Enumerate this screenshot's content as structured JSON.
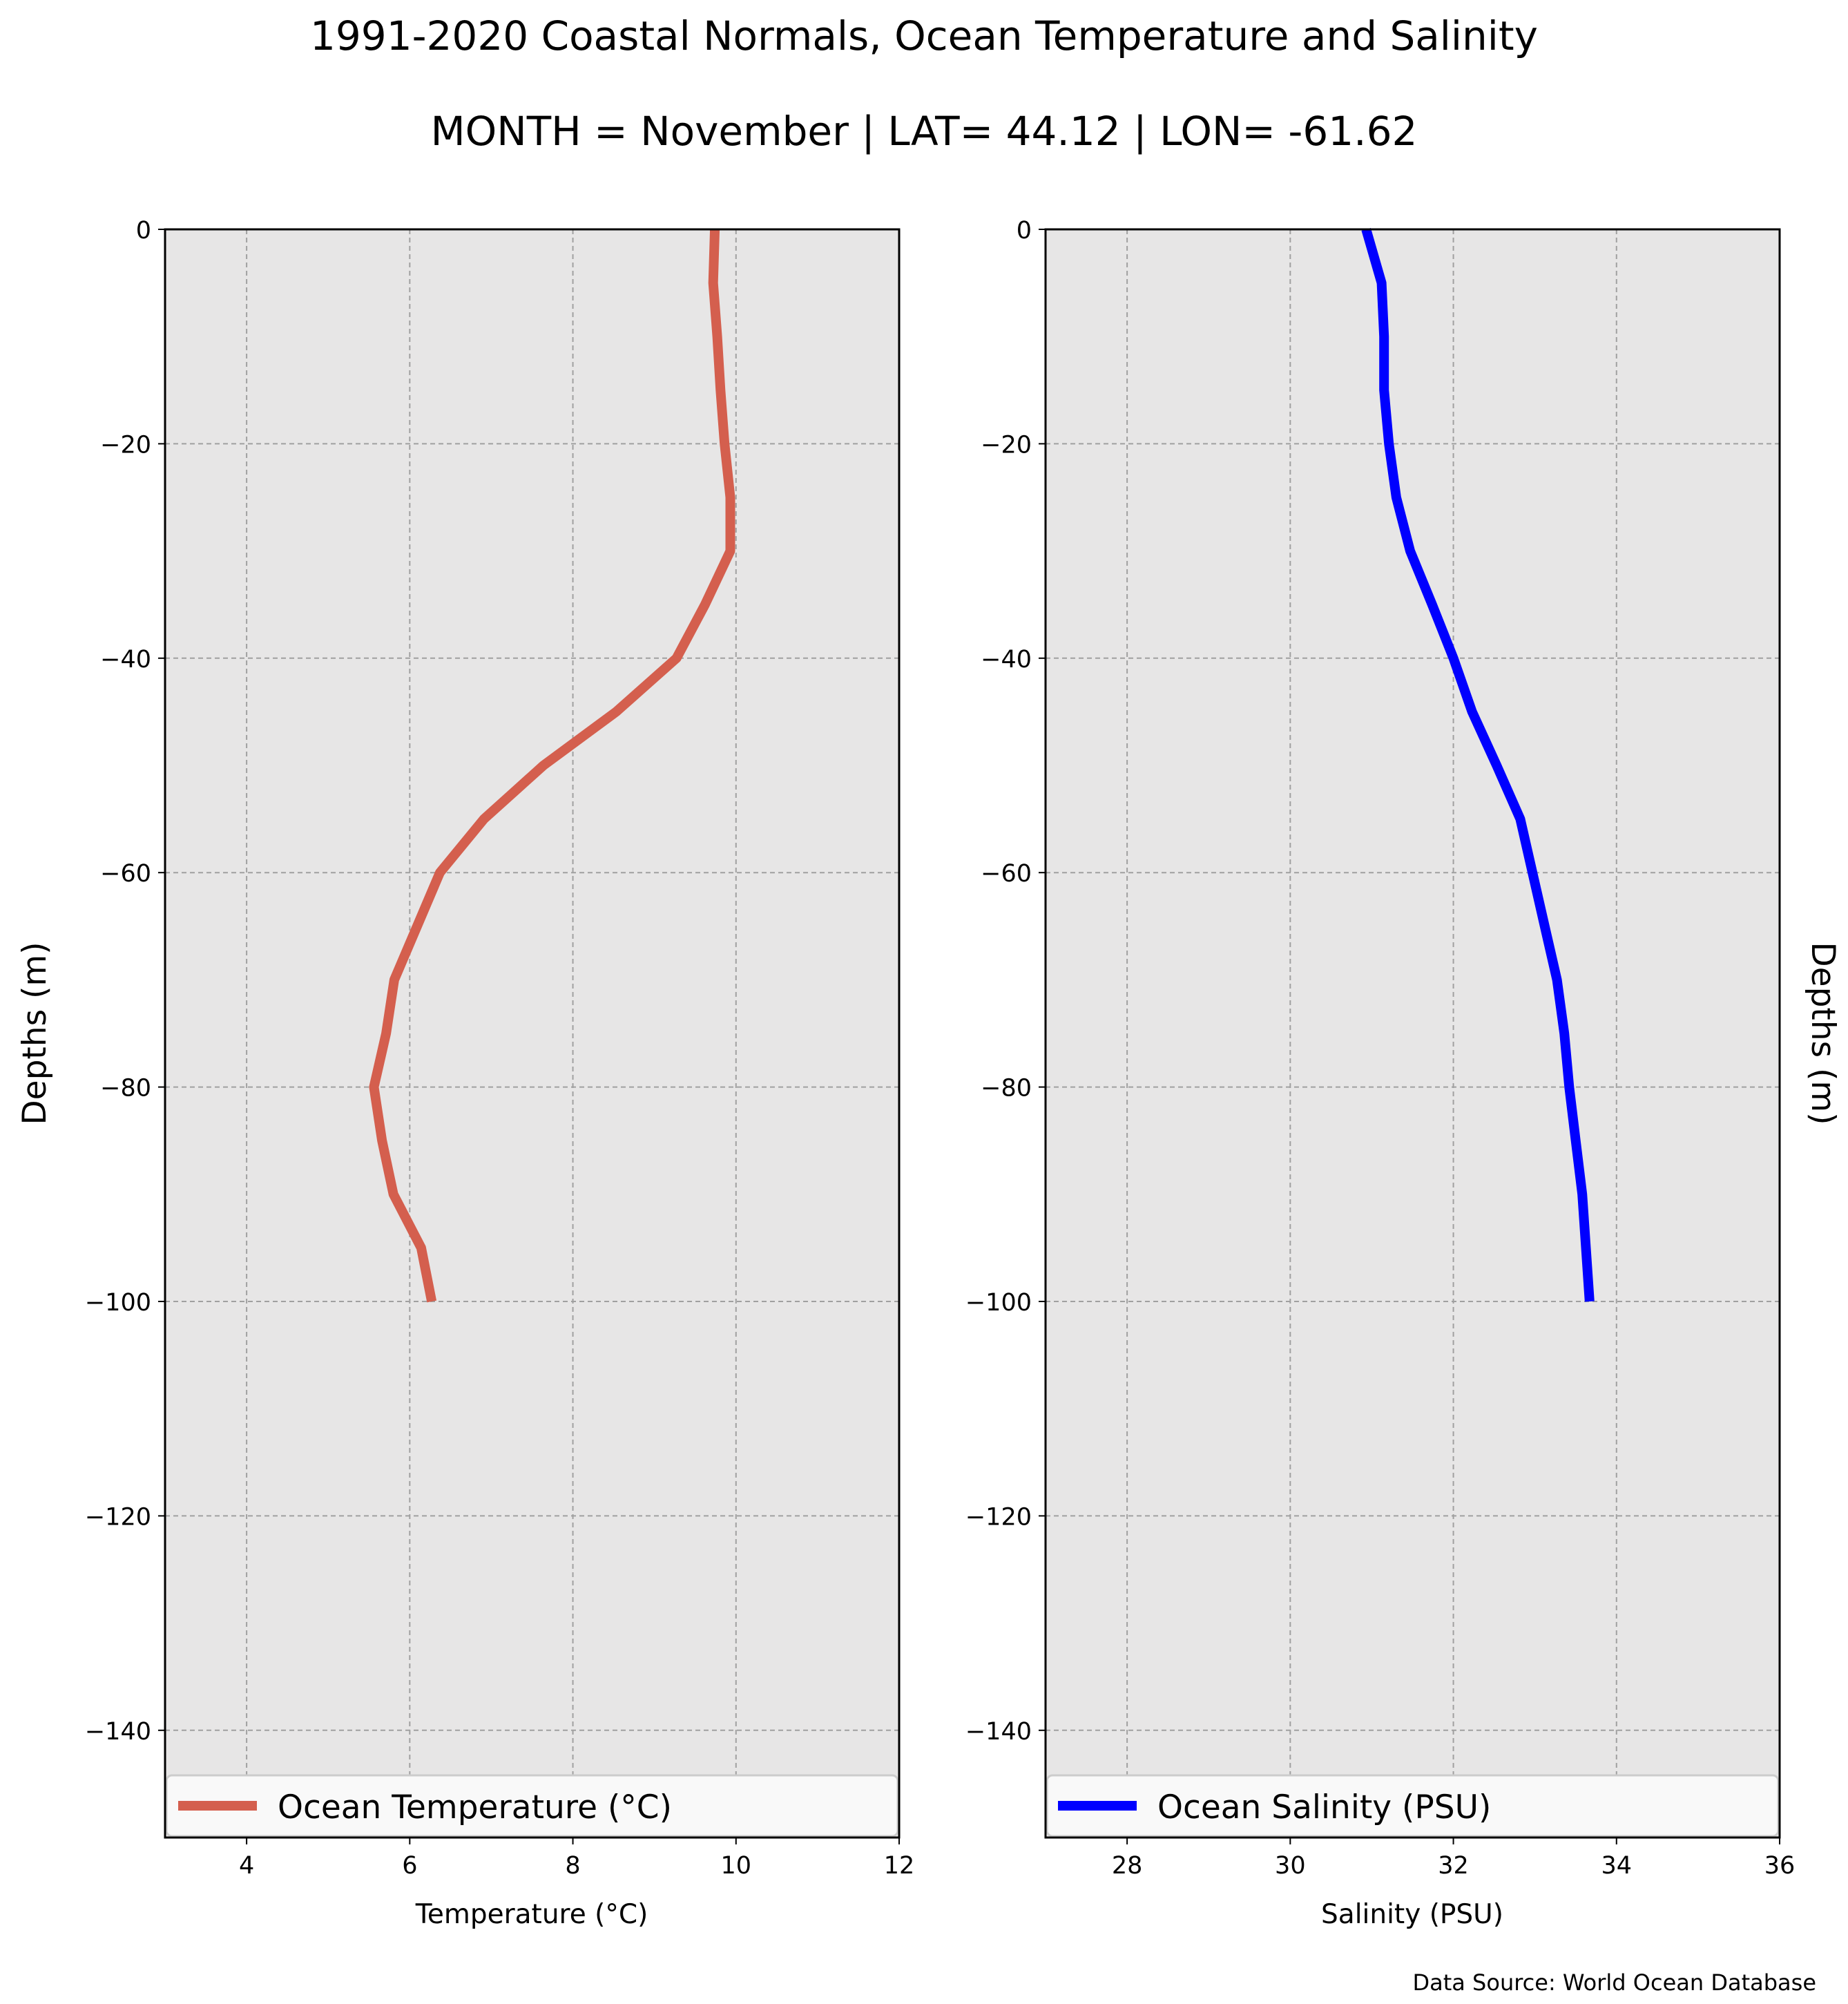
{
  "title": "1991-2020 Coastal Normals, Ocean Temperature and Salinity",
  "subtitle": "MONTH = November | LAT= 44.12 | LON= -61.62",
  "source_note": "Data Source: World Ocean Database",
  "colors": {
    "background": "#ffffff",
    "plot_background": "#e7e6e6",
    "grid": "#a0a0a0",
    "temperature_line": "#d45f4e",
    "salinity_line": "#0000ff"
  },
  "chart_data": [
    {
      "type": "line",
      "xlabel": "Temperature (°C)",
      "ylabel": "Depths (m)",
      "ylabel_side": "left",
      "xlim": [
        3,
        12
      ],
      "ylim": [
        -150,
        0
      ],
      "xticks": [
        4,
        6,
        8,
        10,
        12
      ],
      "xtick_labels": [
        "4",
        "6",
        "8",
        "10",
        "12"
      ],
      "yticks": [
        0,
        -20,
        -40,
        -60,
        -80,
        -100,
        -120,
        -140
      ],
      "ytick_labels": [
        "0",
        "−20",
        "−40",
        "−60",
        "−80",
        "−100",
        "−120",
        "−140"
      ],
      "grid": true,
      "legend_position": "bottom",
      "series": [
        {
          "name": "Ocean Temperature (°C)",
          "color": "#d45f4e",
          "x": [
            9.74,
            9.72,
            9.77,
            9.81,
            9.86,
            9.93,
            9.93,
            9.62,
            9.27,
            8.53,
            7.64,
            6.91,
            6.37,
            6.09,
            5.81,
            5.71,
            5.56,
            5.66,
            5.8,
            6.14,
            6.27
          ],
          "y": [
            0,
            -5,
            -10,
            -15,
            -20,
            -25,
            -30,
            -35,
            -40,
            -45,
            -50,
            -55,
            -60,
            -65,
            -70,
            -75,
            -80,
            -85,
            -90,
            -95,
            -100
          ]
        }
      ]
    },
    {
      "type": "line",
      "xlabel": "Salinity (PSU)",
      "ylabel": "Depths (m)",
      "ylabel_side": "right",
      "xlim": [
        27,
        36
      ],
      "ylim": [
        -150,
        0
      ],
      "xticks": [
        28,
        30,
        32,
        34,
        36
      ],
      "xtick_labels": [
        "28",
        "30",
        "32",
        "34",
        "36"
      ],
      "yticks": [
        0,
        -20,
        -40,
        -60,
        -80,
        -100,
        -120,
        -140
      ],
      "ytick_labels": [
        "0",
        "−20",
        "−40",
        "−60",
        "−80",
        "−100",
        "−120",
        "−140"
      ],
      "grid": true,
      "legend_position": "bottom",
      "series": [
        {
          "name": "Ocean Salinity (PSU)",
          "color": "#0000ff",
          "x": [
            30.93,
            31.12,
            31.15,
            31.15,
            31.21,
            31.3,
            31.47,
            31.74,
            32.0,
            32.23,
            32.53,
            32.82,
            32.97,
            33.12,
            33.27,
            33.36,
            33.42,
            33.5,
            33.58,
            33.67
          ],
          "y": [
            0,
            -5,
            -10,
            -15,
            -20,
            -25,
            -30,
            -35,
            -40,
            -45,
            -50,
            -55,
            -60,
            -65,
            -70,
            -75,
            -80,
            -85,
            -90,
            -100
          ]
        }
      ]
    }
  ]
}
